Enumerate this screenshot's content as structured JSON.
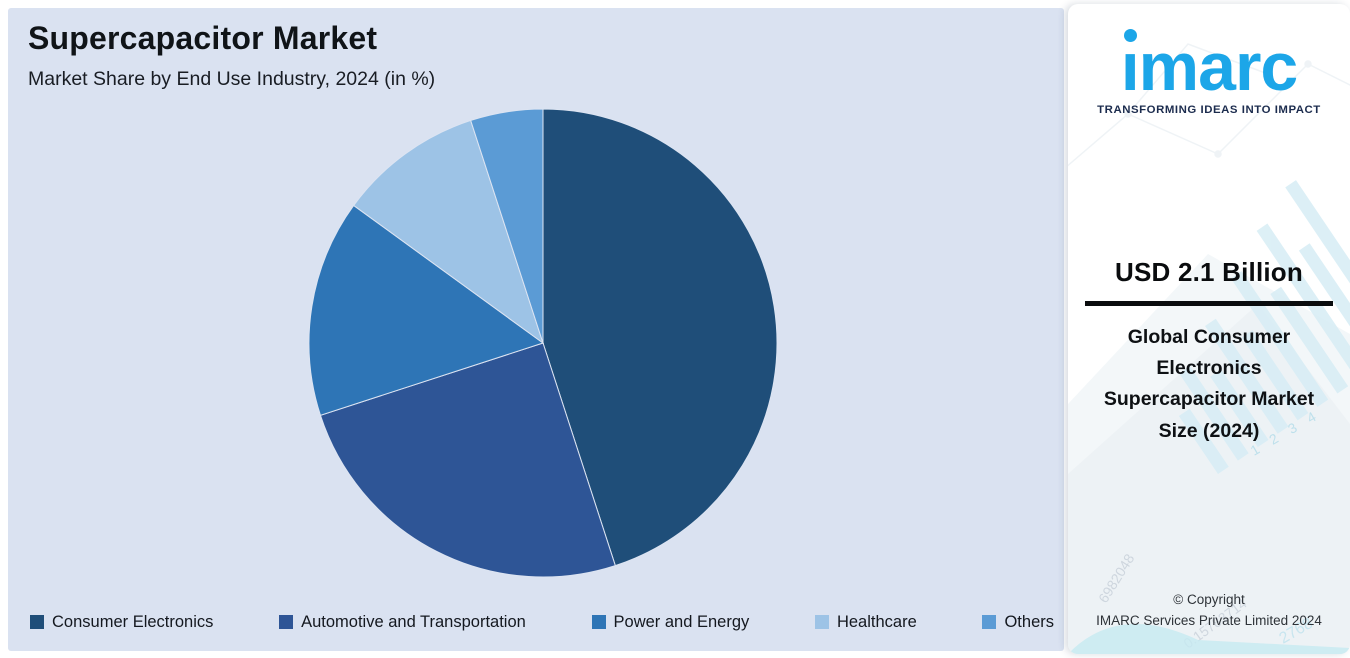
{
  "chart_data": {
    "type": "pie",
    "title": "Supercapacitor Market",
    "subtitle": "Market Share by End Use Industry, 2024 (in %)",
    "unit": "%",
    "categories": [
      "Consumer Electronics",
      "Automotive and Transportation",
      "Power and Energy",
      "Healthcare",
      "Others"
    ],
    "values": [
      45,
      25,
      15,
      10,
      5
    ],
    "colors": [
      "#1f4e79",
      "#2e5596",
      "#2e75b6",
      "#9dc3e6",
      "#5b9bd5"
    ],
    "start_angle_deg": 0,
    "direction": "clockwise",
    "legend_position": "bottom"
  },
  "sidebar": {
    "logo_text": "imarc",
    "logo_tagline": "TRANSFORMING IDEAS INTO IMPACT",
    "stat_value": "USD 2.1 Billion",
    "stat_label": "Global Consumer Electronics Supercapacitor Market Size (2024)",
    "copyright_line1": "© Copyright",
    "copyright_line2": "IMARC Services Private Limited 2024",
    "watermark_numbers": {
      "ticks": "1  2  3  4",
      "num1": "6982048",
      "num2": "0.15783714",
      "num3": "2768"
    }
  },
  "colors": {
    "panel_bg": "#dae2f1",
    "title_color": "#101418",
    "logo_blue": "#1ca6e8",
    "tagline_navy": "#1c2c4e",
    "slice_consumer_electronics": "#1f4e79",
    "slice_automotive_transportation": "#2e5596",
    "slice_power_energy": "#2e75b6",
    "slice_healthcare": "#9dc3e6",
    "slice_others": "#5b9bd5"
  }
}
